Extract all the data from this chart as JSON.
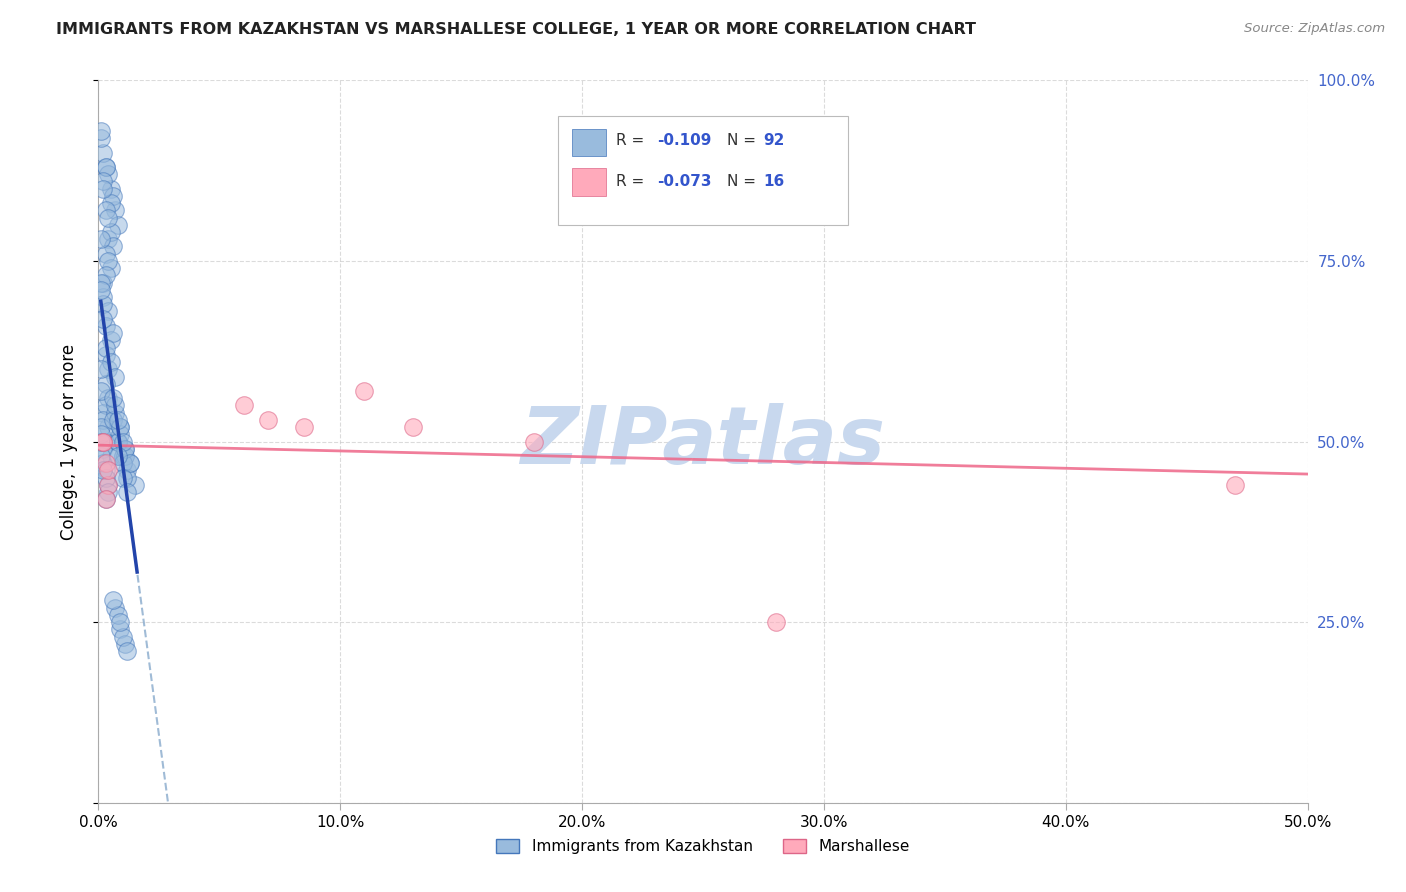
{
  "title": "IMMIGRANTS FROM KAZAKHSTAN VS MARSHALLESE COLLEGE, 1 YEAR OR MORE CORRELATION CHART",
  "source": "Source: ZipAtlas.com",
  "ylabel": "College, 1 year or more",
  "xlim": [
    0.0,
    0.5
  ],
  "ylim": [
    0.0,
    1.0
  ],
  "xtick_labels": [
    "0.0%",
    "10.0%",
    "20.0%",
    "30.0%",
    "40.0%",
    "50.0%"
  ],
  "xtick_vals": [
    0.0,
    0.1,
    0.2,
    0.3,
    0.4,
    0.5
  ],
  "ytick_labels_right": [
    "25.0%",
    "50.0%",
    "75.0%",
    "100.0%"
  ],
  "ytick_vals": [
    0.0,
    0.25,
    0.5,
    0.75,
    1.0
  ],
  "grid_color": "#cccccc",
  "background_color": "#ffffff",
  "watermark_text": "ZIPatlas",
  "watermark_color": "#c8d8ee",
  "blue_scatter_face": "#99bbdd",
  "blue_scatter_edge": "#4477bb",
  "pink_scatter_face": "#ffaabb",
  "pink_scatter_edge": "#dd6688",
  "blue_line_color": "#2244aa",
  "blue_dash_color": "#88aacc",
  "pink_line_color": "#ee6688",
  "right_axis_color": "#4466cc",
  "legend_color": "#3355cc",
  "kazakhstan_x": [
    0.003,
    0.005,
    0.007,
    0.002,
    0.004,
    0.006,
    0.008,
    0.001,
    0.003,
    0.005,
    0.004,
    0.002,
    0.003,
    0.005,
    0.001,
    0.002,
    0.004,
    0.006,
    0.003,
    0.005,
    0.002,
    0.004,
    0.001,
    0.003,
    0.002,
    0.004,
    0.003,
    0.005,
    0.002,
    0.001,
    0.003,
    0.004,
    0.006,
    0.002,
    0.003,
    0.005,
    0.007,
    0.001,
    0.003,
    0.004,
    0.002,
    0.001,
    0.003,
    0.004,
    0.001,
    0.002,
    0.003,
    0.005,
    0.001,
    0.002,
    0.003,
    0.004,
    0.001,
    0.002,
    0.003,
    0.004,
    0.001,
    0.002,
    0.003,
    0.001,
    0.008,
    0.01,
    0.012,
    0.015,
    0.009,
    0.011,
    0.013,
    0.007,
    0.009,
    0.011,
    0.006,
    0.008,
    0.01,
    0.012,
    0.007,
    0.009,
    0.011,
    0.006,
    0.008,
    0.01,
    0.013,
    0.008,
    0.01,
    0.012,
    0.007,
    0.009,
    0.011,
    0.008,
    0.01,
    0.012,
    0.006,
    0.009
  ],
  "kazakhstan_y": [
    0.88,
    0.85,
    0.82,
    0.9,
    0.87,
    0.84,
    0.8,
    0.92,
    0.88,
    0.83,
    0.78,
    0.86,
    0.82,
    0.79,
    0.93,
    0.85,
    0.81,
    0.77,
    0.76,
    0.74,
    0.72,
    0.75,
    0.78,
    0.73,
    0.7,
    0.68,
    0.66,
    0.64,
    0.69,
    0.72,
    0.62,
    0.6,
    0.65,
    0.67,
    0.63,
    0.61,
    0.59,
    0.71,
    0.58,
    0.56,
    0.54,
    0.6,
    0.55,
    0.52,
    0.57,
    0.53,
    0.5,
    0.48,
    0.52,
    0.49,
    0.46,
    0.44,
    0.51,
    0.47,
    0.45,
    0.43,
    0.48,
    0.46,
    0.42,
    0.5,
    0.5,
    0.48,
    0.46,
    0.44,
    0.52,
    0.49,
    0.47,
    0.54,
    0.51,
    0.48,
    0.53,
    0.5,
    0.47,
    0.45,
    0.55,
    0.52,
    0.49,
    0.56,
    0.53,
    0.5,
    0.47,
    0.48,
    0.45,
    0.43,
    0.27,
    0.24,
    0.22,
    0.26,
    0.23,
    0.21,
    0.28,
    0.25
  ],
  "marshallese_x": [
    0.002,
    0.003,
    0.004,
    0.003,
    0.002,
    0.004,
    0.06,
    0.07,
    0.085,
    0.11,
    0.13,
    0.18,
    0.28,
    0.47
  ],
  "marshallese_y": [
    0.5,
    0.47,
    0.44,
    0.42,
    0.5,
    0.46,
    0.55,
    0.53,
    0.52,
    0.57,
    0.52,
    0.5,
    0.25,
    0.44
  ],
  "marsh_line_start_x": 0.0,
  "marsh_line_end_x": 0.5,
  "marsh_line_start_y": 0.495,
  "marsh_line_end_y": 0.455
}
